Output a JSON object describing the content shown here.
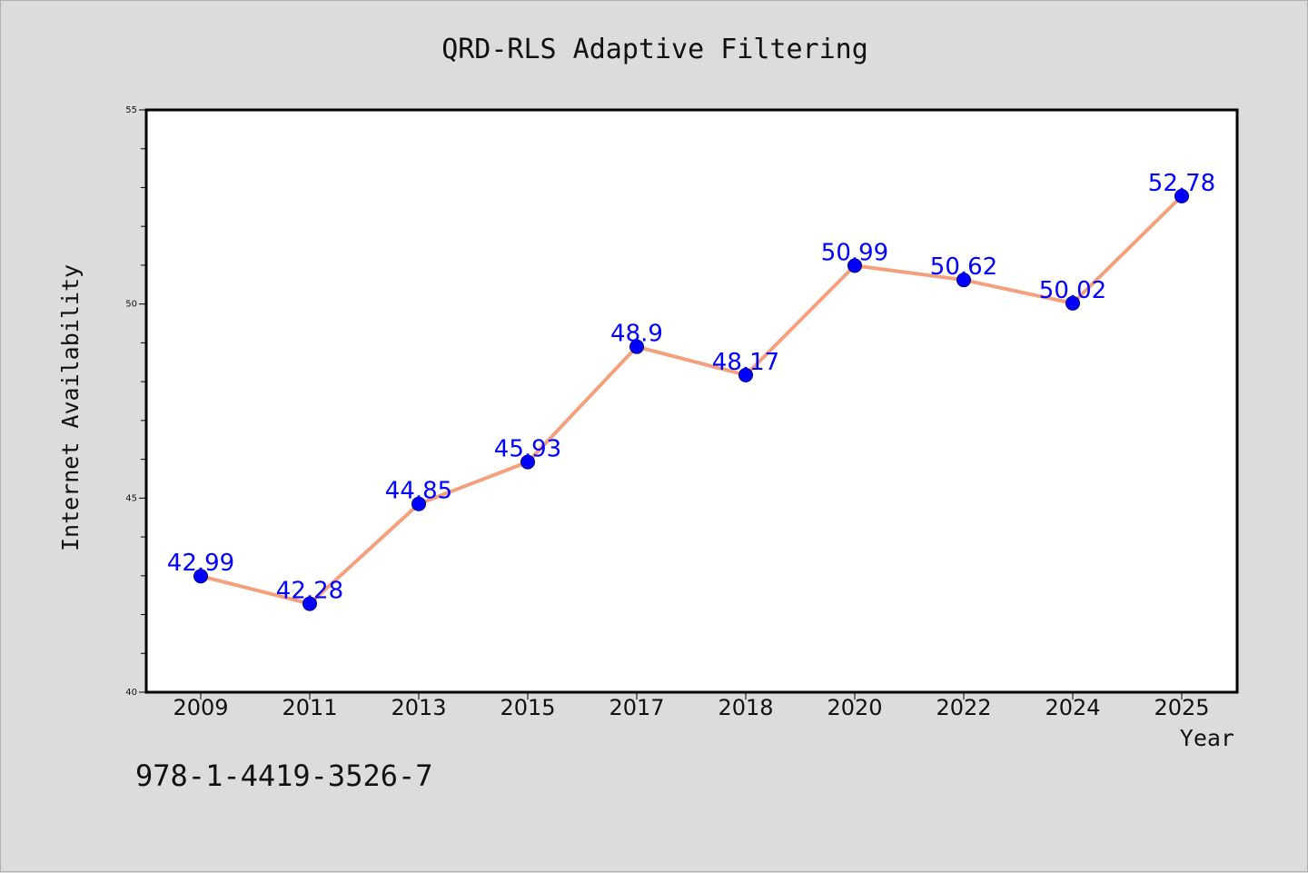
{
  "chart_data": {
    "type": "line",
    "title": "QRD-RLS Adaptive Filtering",
    "xlabel": "Year",
    "ylabel": "Internet Availability",
    "categories": [
      "2009",
      "2011",
      "2013",
      "2015",
      "2017",
      "2018",
      "2020",
      "2022",
      "2024",
      "2025"
    ],
    "series": [
      {
        "values": [
          42.99,
          42.28,
          44.85,
          45.93,
          48.9,
          48.17,
          50.99,
          50.62,
          50.02,
          52.78
        ],
        "labels": [
          "42.99",
          "42.28",
          "44.85",
          "45.93",
          "48.9",
          "48.17",
          "50.99",
          "50.62",
          "50.02",
          "52.78"
        ]
      }
    ],
    "ylim": [
      40,
      55
    ],
    "yticks": [
      "40",
      "45",
      "50",
      "55"
    ],
    "grid": false,
    "line_color": "#f4a07c",
    "marker_color": "#0000ff"
  },
  "footer_text": "978-1-4419-3526-7"
}
